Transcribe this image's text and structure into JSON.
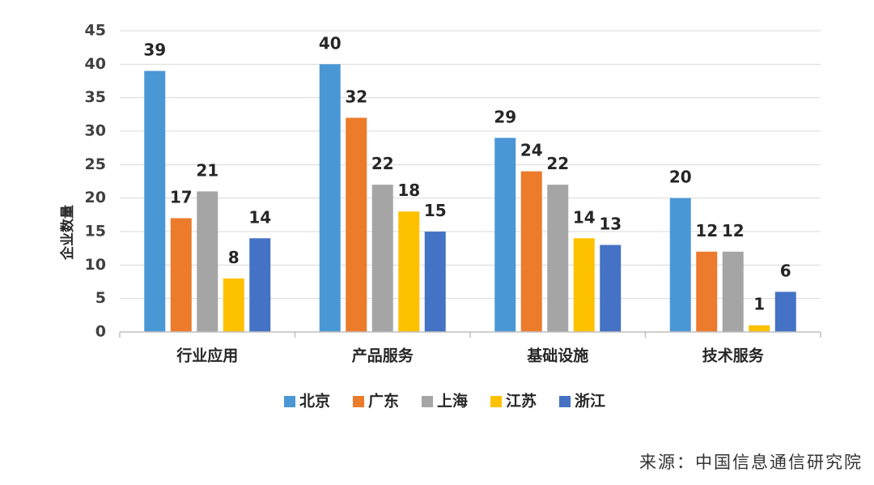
{
  "chart_data": {
    "type": "bar",
    "categories": [
      "行业应用",
      "产品服务",
      "基础设施",
      "技术服务"
    ],
    "series": [
      {
        "name": "北京",
        "color": "#4a97d6",
        "values": [
          39,
          40,
          29,
          20
        ]
      },
      {
        "name": "广东",
        "color": "#ec7b2c",
        "values": [
          17,
          32,
          24,
          12
        ]
      },
      {
        "name": "上海",
        "color": "#a5a5a5",
        "values": [
          21,
          22,
          22,
          12
        ]
      },
      {
        "name": "江苏",
        "color": "#fdc100",
        "values": [
          8,
          18,
          14,
          1
        ]
      },
      {
        "name": "浙江",
        "color": "#4472c4",
        "values": [
          14,
          15,
          13,
          6
        ]
      }
    ],
    "ylabel": "企业数量",
    "ylim": [
      0,
      45
    ],
    "yticks": [
      0,
      5,
      10,
      15,
      20,
      25,
      30,
      35,
      40,
      45
    ],
    "grid": true,
    "legend_position": "bottom",
    "data_labels": true
  },
  "source_note": "来源：中国信息通信研究院"
}
